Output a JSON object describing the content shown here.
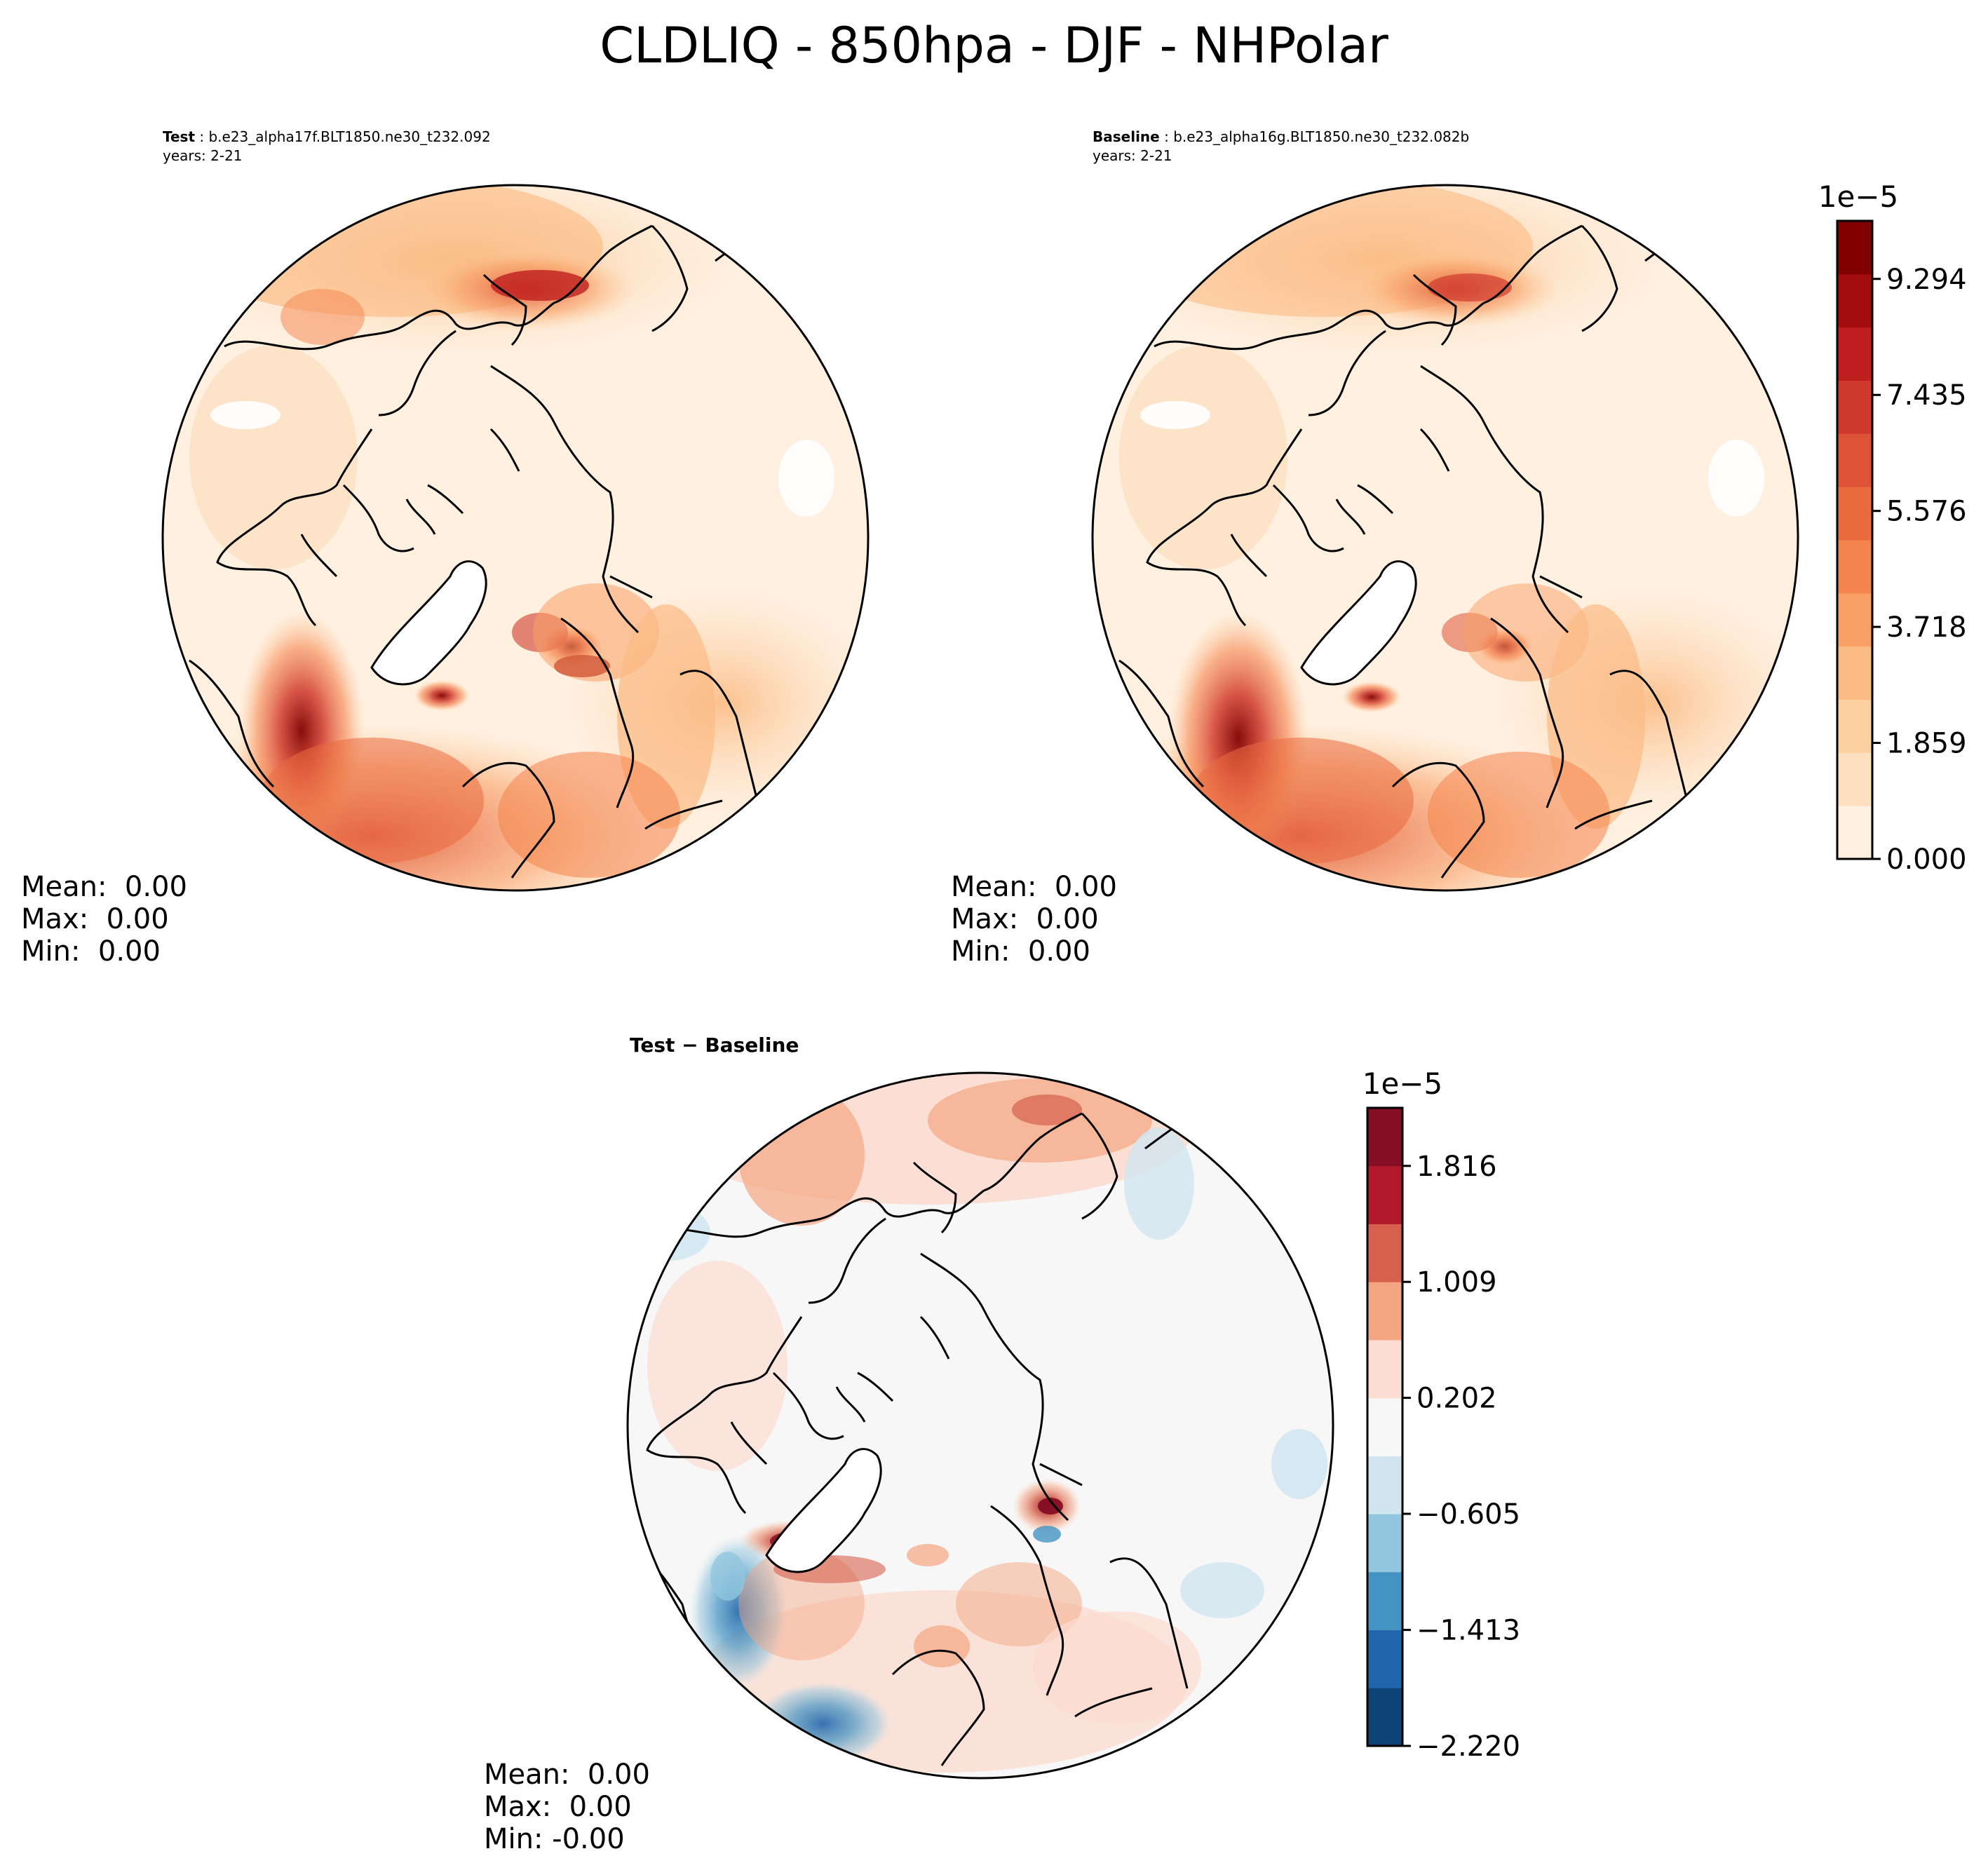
{
  "figure": {
    "title": "CLDLIQ - 850hpa - DJF - NHPolar"
  },
  "panels": {
    "test": {
      "label": "Test",
      "case": "b.e23_alpha17f.BLT1850.ne30_t232.092",
      "years": "years: 2-21",
      "stats": {
        "mean": "Mean:  0.00",
        "max": "Max:  0.00",
        "min": "Min:  0.00"
      }
    },
    "baseline": {
      "label": "Baseline",
      "case": "b.e23_alpha16g.BLT1850.ne30_t232.082b",
      "years": "years: 2-21",
      "stats": {
        "mean": "Mean:  0.00",
        "max": "Max:  0.00",
        "min": "Min:  0.00"
      }
    },
    "diff": {
      "title": "Test − Baseline",
      "stats": {
        "mean": "Mean:  0.00",
        "max": "Max:  0.00",
        "min": "Min: -0.00"
      }
    }
  },
  "chart_data": [
    {
      "type": "heatmap",
      "title": "Test",
      "projection": "North Polar Stereographic",
      "variable": "CLDLIQ",
      "level": "850hpa",
      "season": "DJF",
      "colormap": "OrRd-like sequential",
      "colorbar_ref": "colorbar_abs"
    },
    {
      "type": "heatmap",
      "title": "Baseline",
      "projection": "North Polar Stereographic",
      "variable": "CLDLIQ",
      "level": "850hpa",
      "season": "DJF",
      "colormap": "OrRd-like sequential",
      "colorbar_ref": "colorbar_abs"
    },
    {
      "type": "heatmap",
      "title": "Test − Baseline",
      "projection": "North Polar Stereographic",
      "variable": "CLDLIQ difference",
      "colormap": "RdBu_r diverging",
      "colorbar_ref": "colorbar_diff"
    }
  ],
  "colorbar_abs": {
    "exponent": "1e−5",
    "ticks": [
      "0.000",
      "1.859",
      "3.718",
      "5.576",
      "7.435",
      "9.294"
    ],
    "tick_values": [
      0.0,
      1.859,
      3.718,
      5.576,
      7.435,
      9.294
    ],
    "range": [
      0.0,
      10.224
    ],
    "colors": [
      "#fff0e0",
      "#fde0c0",
      "#fcd0a0",
      "#fbbb84",
      "#f9a066",
      "#f4844d",
      "#ea6b40",
      "#de5337",
      "#d03a2c",
      "#bf1e1e",
      "#a40d0d",
      "#800000"
    ]
  },
  "colorbar_diff": {
    "exponent": "1e−5",
    "ticks": [
      "1.816",
      "1.009",
      "0.202",
      "−0.605",
      "−1.413",
      "−2.220"
    ],
    "tick_values": [
      1.816,
      1.009,
      0.202,
      -0.605,
      -1.413,
      -2.22
    ],
    "range": [
      -2.22,
      2.22
    ],
    "colors": [
      "#0d4277",
      "#2166ac",
      "#4393c3",
      "#92c5de",
      "#d1e5f0",
      "#f7f7f7",
      "#fbdcd0",
      "#f4a582",
      "#d6604d",
      "#b2182b",
      "#850e24"
    ]
  },
  "land": {
    "greenland_color": "#ffffff",
    "outline_color": "#000000"
  }
}
